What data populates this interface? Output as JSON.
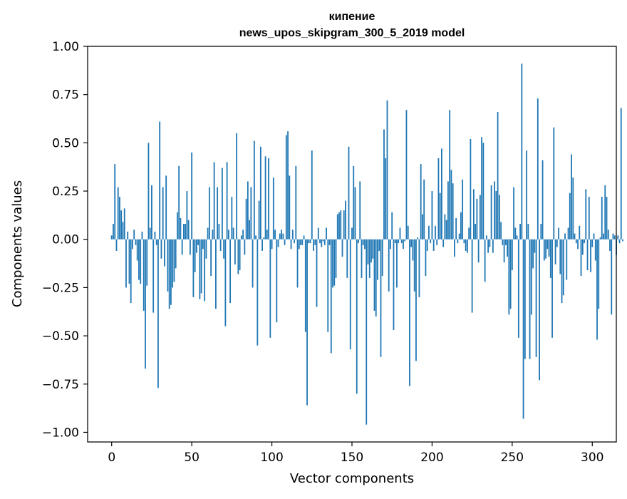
{
  "chart_data": {
    "type": "bar",
    "title": "кипение",
    "subtitle": "news_upos_skipgram_300_5_2019 model",
    "xlabel": "Vector components",
    "ylabel": "Components values",
    "xlim": [
      -15,
      315
    ],
    "ylim": [
      -1.05,
      1.0
    ],
    "x_ticks": [
      0,
      50,
      100,
      150,
      200,
      250,
      300
    ],
    "x_tick_labels": [
      "0",
      "50",
      "100",
      "150",
      "200",
      "250",
      "300"
    ],
    "y_ticks": [
      1.0,
      0.75,
      0.5,
      0.25,
      0.0,
      -0.25,
      -0.5,
      -0.75,
      -1.0
    ],
    "y_tick_labels": [
      "1.00",
      "0.75",
      "0.50",
      "0.25",
      "0.00",
      "−0.25",
      "−0.50",
      "−0.75",
      "−1.00"
    ],
    "bar_color": "#1f77b4",
    "grid": false,
    "series": [
      {
        "name": "кипение",
        "values": [
          0.02,
          0.08,
          0.39,
          -0.06,
          0.27,
          0.22,
          0.15,
          0.09,
          0.16,
          -0.25,
          0.04,
          -0.23,
          -0.33,
          -0.05,
          0.05,
          -0.03,
          -0.11,
          -0.21,
          -0.23,
          0.04,
          -0.37,
          -0.67,
          -0.24,
          0.5,
          0.06,
          0.28,
          -0.38,
          0.04,
          -0.03,
          -0.77,
          0.61,
          -0.1,
          0.27,
          -0.14,
          0.33,
          -0.27,
          -0.36,
          -0.34,
          -0.25,
          -0.22,
          -0.15,
          0.14,
          0.38,
          0.11,
          -0.08,
          0.08,
          0.08,
          0.25,
          0.1,
          -0.08,
          0.45,
          -0.3,
          -0.17,
          -0.07,
          -0.03,
          -0.31,
          -0.28,
          -0.05,
          -0.32,
          -0.1,
          0.06,
          0.27,
          -0.19,
          0.05,
          0.4,
          -0.36,
          0.27,
          0.08,
          -0.06,
          0.37,
          -0.1,
          -0.45,
          0.4,
          0.05,
          -0.33,
          0.22,
          0.06,
          -0.13,
          0.55,
          -0.18,
          -0.16,
          0.02,
          0.05,
          -0.08,
          0.21,
          0.3,
          0.1,
          0.27,
          -0.25,
          0.51,
          0.02,
          -0.55,
          0.2,
          0.48,
          -0.06,
          0.01,
          0.43,
          0.05,
          0.42,
          -0.51,
          -0.05,
          0.32,
          0.05,
          -0.43,
          -0.04,
          0.03,
          0.05,
          0.03,
          -0.03,
          0.54,
          0.56,
          0.33,
          -0.05,
          0.05,
          -0.02,
          0.38,
          -0.25,
          -0.05,
          -0.03,
          -0.03,
          0.02,
          -0.48,
          -0.86,
          -0.02,
          -0.02,
          0.46,
          -0.06,
          -0.03,
          -0.35,
          0.06,
          -0.02,
          -0.04,
          -0.01,
          -0.03,
          0.06,
          -0.48,
          -0.03,
          -0.59,
          -0.25,
          -0.24,
          -0.2,
          0.13,
          0.14,
          0.15,
          -0.09,
          0.15,
          0.2,
          -0.2,
          0.48,
          -0.57,
          0.06,
          0.38,
          0.27,
          -0.8,
          -0.02,
          0.3,
          -0.2,
          -0.03,
          -0.05,
          -0.96,
          -0.13,
          -0.2,
          -0.12,
          -0.1,
          -0.37,
          -0.4,
          -0.21,
          -0.06,
          -0.61,
          -0.19,
          0.57,
          0.42,
          0.72,
          -0.27,
          -0.05,
          0.14,
          -0.47,
          -0.02,
          -0.25,
          -0.02,
          0.06,
          -0.02,
          -0.05,
          -0.01,
          0.67,
          0.07,
          -0.76,
          -0.04,
          -0.11,
          -0.27,
          -0.63,
          0.01,
          -0.3,
          0.39,
          0.13,
          0.31,
          -0.19,
          -0.06,
          0.07,
          -0.02,
          0.25,
          -0.06,
          0.07,
          -0.03,
          0.42,
          0.24,
          0.47,
          -0.04,
          0.13,
          0.1,
          0.3,
          0.67,
          0.36,
          0.29,
          -0.09,
          0.11,
          -0.02,
          0.03,
          0.14,
          0.31,
          -0.02,
          -0.06,
          -0.07,
          0.06,
          0.52,
          -0.38,
          0.26,
          0.08,
          0.21,
          -0.12,
          0.23,
          0.53,
          0.5,
          -0.22,
          0.02,
          -0.07,
          -0.04,
          0.28,
          -0.07,
          0.3,
          0.25,
          0.66,
          0.23,
          0.09,
          -0.03,
          -0.12,
          -0.03,
          -0.09,
          -0.39,
          -0.36,
          -0.16,
          0.27,
          0.06,
          0.02,
          -0.51,
          0.08,
          0.91,
          -0.93,
          -0.62,
          0.46,
          0.08,
          -0.62,
          -0.39,
          -0.15,
          -0.07,
          -0.61,
          0.73,
          -0.73,
          0.08,
          0.41,
          -0.11,
          -0.1,
          -0.05,
          -0.09,
          -0.2,
          -0.51,
          0.58,
          -0.13,
          -0.04,
          0.06,
          -0.18,
          -0.33,
          -0.29,
          0.03,
          -0.21,
          0.06,
          0.24,
          0.44,
          0.32,
          0.03,
          -0.02,
          -0.05,
          0.07,
          -0.19,
          -0.08,
          -0.02,
          0.26,
          -0.16,
          0.22,
          -0.17,
          -0.04,
          0.03,
          -0.11,
          -0.52,
          -0.36,
          0.01,
          0.22,
          0.03,
          0.28,
          0.22,
          0.05,
          -0.06,
          -0.39,
          0.03,
          0.02,
          -0.08,
          0.02,
          -0.02,
          0.68,
          -0.01
        ]
      }
    ]
  }
}
